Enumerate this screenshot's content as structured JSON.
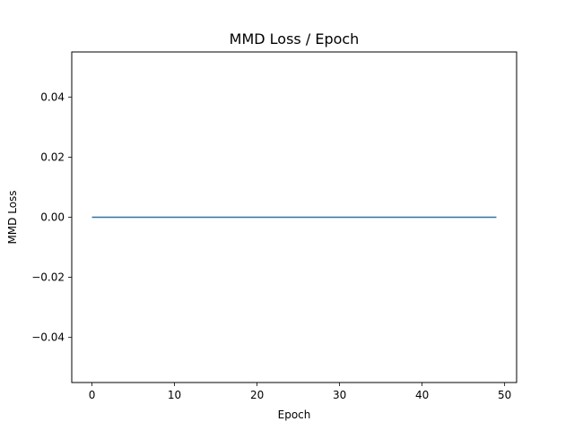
{
  "chart_data": {
    "type": "line",
    "title": "MMD Loss / Epoch",
    "xlabel": "Epoch",
    "ylabel": "MMD Loss",
    "xlim": [
      -2.45,
      51.45
    ],
    "ylim": [
      -0.055,
      0.055
    ],
    "x_ticks": [
      0,
      10,
      20,
      30,
      40,
      50
    ],
    "x_tick_labels": [
      "0",
      "10",
      "20",
      "30",
      "40",
      "50"
    ],
    "y_ticks": [
      -0.04,
      -0.02,
      0.0,
      0.02,
      0.04
    ],
    "y_tick_labels": [
      "−0.04",
      "−0.02",
      "0.00",
      "0.02",
      "0.04"
    ],
    "grid": false,
    "series": [
      {
        "color": "#1f77b4",
        "x": [
          0,
          1,
          2,
          3,
          4,
          5,
          6,
          7,
          8,
          9,
          10,
          11,
          12,
          13,
          14,
          15,
          16,
          17,
          18,
          19,
          20,
          21,
          22,
          23,
          24,
          25,
          26,
          27,
          28,
          29,
          30,
          31,
          32,
          33,
          34,
          35,
          36,
          37,
          38,
          39,
          40,
          41,
          42,
          43,
          44,
          45,
          46,
          47,
          48,
          49
        ],
        "values": [
          0,
          0,
          0,
          0,
          0,
          0,
          0,
          0,
          0,
          0,
          0,
          0,
          0,
          0,
          0,
          0,
          0,
          0,
          0,
          0,
          0,
          0,
          0,
          0,
          0,
          0,
          0,
          0,
          0,
          0,
          0,
          0,
          0,
          0,
          0,
          0,
          0,
          0,
          0,
          0,
          0,
          0,
          0,
          0,
          0,
          0,
          0,
          0,
          0,
          0
        ]
      }
    ]
  }
}
